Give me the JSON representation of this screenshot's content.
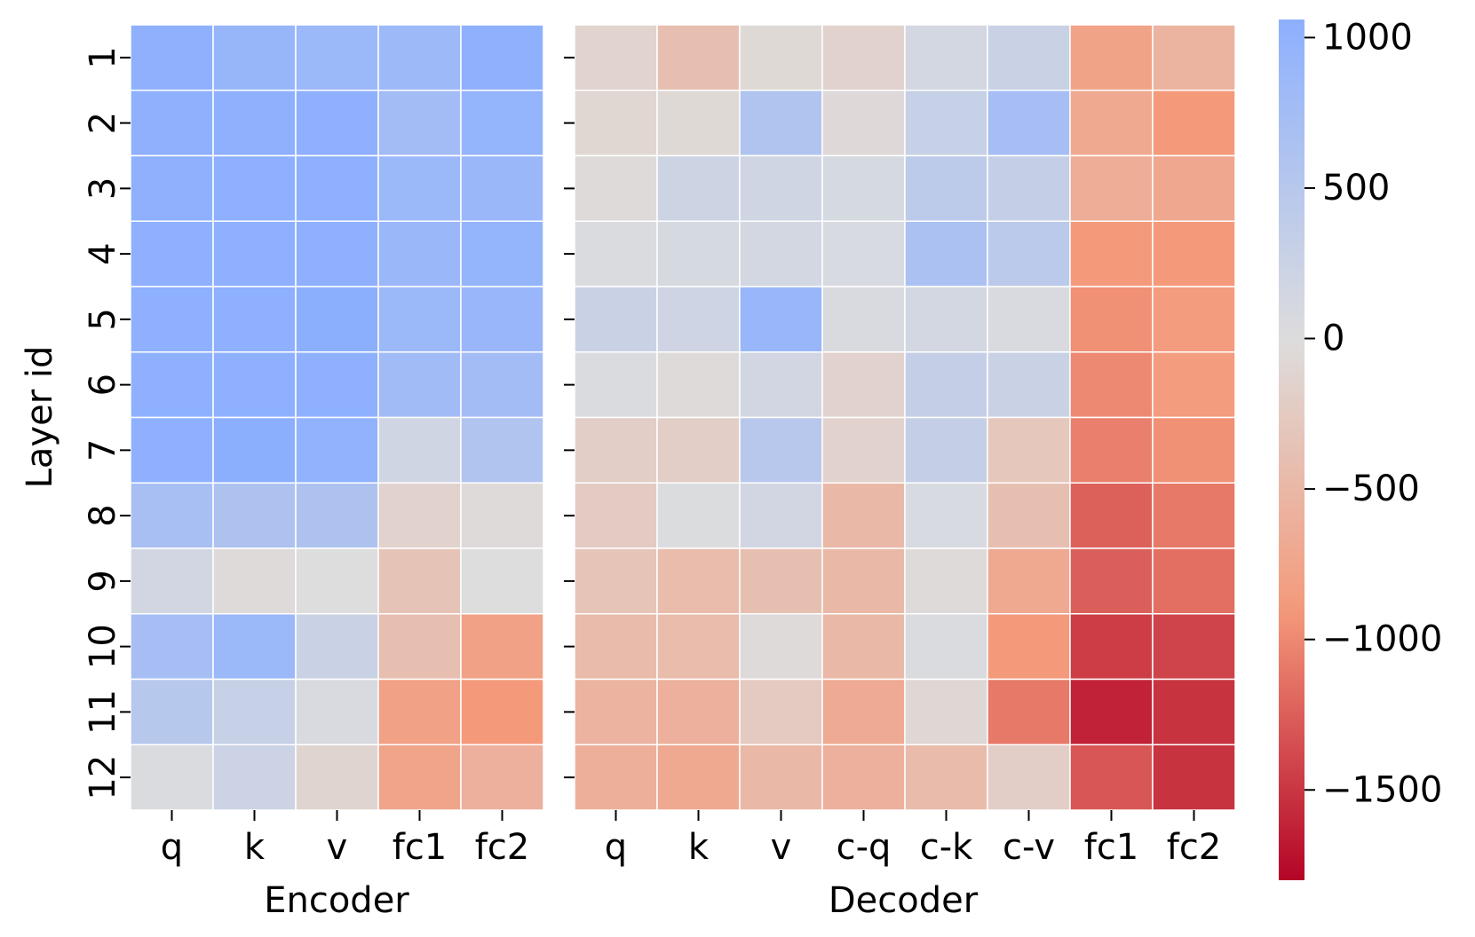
{
  "chart_data": [
    {
      "type": "heatmap",
      "panel": "encoder",
      "xlabel": "Encoder",
      "ylabel": "Layer id",
      "columns": [
        "q",
        "k",
        "v",
        "fc1",
        "fc2"
      ],
      "rows": [
        "1",
        "2",
        "3",
        "4",
        "5",
        "6",
        "7",
        "8",
        "9",
        "10",
        "11",
        "12"
      ],
      "values": [
        [
          1020,
          920,
          860,
          840,
          1020
        ],
        [
          1020,
          1020,
          1040,
          760,
          960
        ],
        [
          1020,
          1040,
          1040,
          860,
          880
        ],
        [
          1040,
          1040,
          1040,
          880,
          940
        ],
        [
          1040,
          1040,
          1060,
          860,
          900
        ],
        [
          1040,
          1040,
          1040,
          800,
          760
        ],
        [
          1040,
          1060,
          1000,
          180,
          580
        ],
        [
          700,
          620,
          620,
          -150,
          -40
        ],
        [
          160,
          -40,
          0,
          -350,
          0
        ],
        [
          720,
          860,
          260,
          -400,
          -800
        ],
        [
          500,
          300,
          60,
          -800,
          -900
        ],
        [
          40,
          240,
          -120,
          -750,
          -600
        ]
      ]
    },
    {
      "type": "heatmap",
      "panel": "decoder",
      "xlabel": "Decoder",
      "ylabel": "",
      "columns": [
        "q",
        "k",
        "v",
        "c-q",
        "c-k",
        "c-v",
        "fc1",
        "fc2"
      ],
      "rows": [
        "1",
        "2",
        "3",
        "4",
        "5",
        "6",
        "7",
        "8",
        "9",
        "10",
        "11",
        "12"
      ],
      "values": [
        [
          -140,
          -400,
          -60,
          -150,
          150,
          260,
          -780,
          -550
        ],
        [
          -100,
          -60,
          580,
          -50,
          300,
          720,
          -700,
          -900
        ],
        [
          -40,
          220,
          180,
          100,
          420,
          330,
          -650,
          -720
        ],
        [
          40,
          100,
          140,
          80,
          650,
          450,
          -900,
          -900
        ],
        [
          260,
          200,
          900,
          60,
          150,
          60,
          -960,
          -870
        ],
        [
          40,
          -40,
          160,
          -150,
          330,
          260,
          -1000,
          -870
        ],
        [
          -200,
          -200,
          480,
          -150,
          330,
          -300,
          -1060,
          -960
        ],
        [
          -250,
          30,
          160,
          -500,
          80,
          -400,
          -1240,
          -1100
        ],
        [
          -340,
          -450,
          -400,
          -500,
          -40,
          -700,
          -1260,
          -1160
        ],
        [
          -460,
          -450,
          -40,
          -500,
          40,
          -900,
          -1460,
          -1420
        ],
        [
          -560,
          -600,
          -260,
          -680,
          -80,
          -1100,
          -1620,
          -1520
        ],
        [
          -620,
          -700,
          -500,
          -600,
          -460,
          -200,
          -1300,
          -1520
        ]
      ]
    }
  ],
  "colorbar": {
    "colormap": "coolwarm",
    "vmin": -1800,
    "vmax": 1060,
    "ticks": [
      1000,
      500,
      0,
      -500,
      -1000,
      -1500
    ],
    "tick_labels": [
      "1000",
      "500",
      "0",
      "−500",
      "−1000",
      "−1500"
    ]
  }
}
